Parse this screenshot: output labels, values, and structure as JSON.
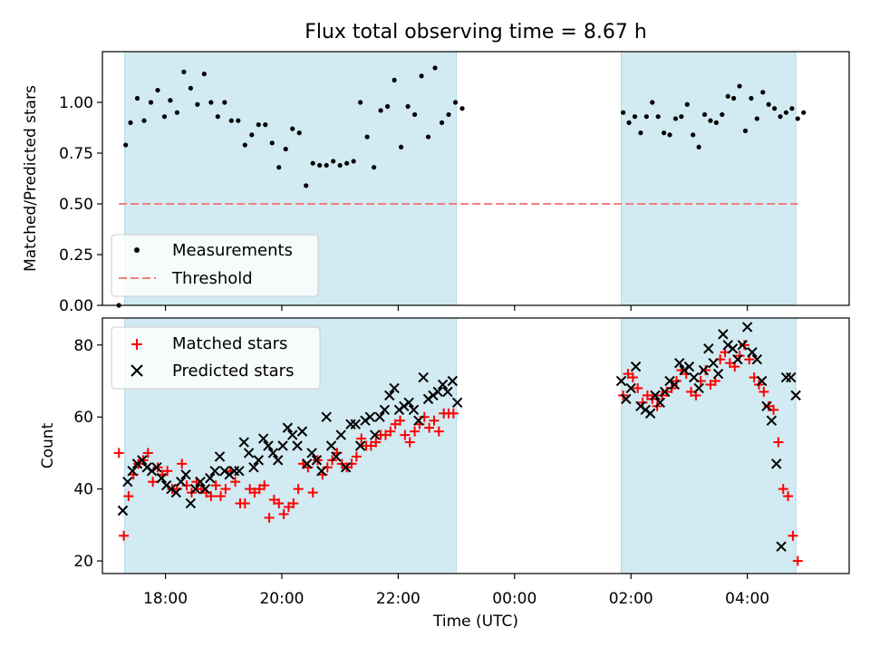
{
  "figure": {
    "title": "Flux total observing time = 8.67 h",
    "xlabel": "Time (UTC)"
  },
  "colors": {
    "shade": "#add8e6",
    "threshold": "#f08080",
    "matched": "#ff0000",
    "predicted": "#000000",
    "measurement": "#000000"
  },
  "chart_data": [
    {
      "type": "scatter",
      "ylabel": "Matched/Predicted stars",
      "xlim": [
        "16:55",
        "29:45"
      ],
      "x_ticks": [],
      "ylim": [
        0,
        1.25
      ],
      "y_ticks": [
        0.0,
        0.25,
        0.5,
        0.75,
        1.0
      ],
      "y_tick_labels": [
        "0.00",
        "0.25",
        "0.50",
        "0.75",
        "1.00"
      ],
      "legend_location": "lower-left",
      "shaded_intervals": [
        [
          "17:18",
          "23:00"
        ],
        [
          "25:50",
          "28:50"
        ]
      ],
      "series": [
        {
          "name": "Measurements",
          "style": "dot",
          "x": [
            "17:12",
            "17:19",
            "17:24",
            "17:31",
            "17:38",
            "17:45",
            "17:52",
            "17:59",
            "18:05",
            "18:12",
            "18:19",
            "18:26",
            "18:33",
            "18:40",
            "18:47",
            "18:54",
            "19:01",
            "19:08",
            "19:15",
            "19:22",
            "19:29",
            "19:36",
            "19:43",
            "19:50",
            "19:57",
            "20:04",
            "20:11",
            "20:18",
            "20:25",
            "20:32",
            "20:39",
            "20:46",
            "20:53",
            "21:00",
            "21:07",
            "21:14",
            "21:21",
            "21:28",
            "21:35",
            "21:42",
            "21:49",
            "21:56",
            "22:03",
            "22:10",
            "22:17",
            "22:24",
            "22:31",
            "22:38",
            "22:45",
            "22:52",
            "22:59",
            "23:06",
            "25:52",
            "25:58",
            "26:04",
            "26:10",
            "26:16",
            "26:22",
            "26:28",
            "26:34",
            "26:40",
            "26:46",
            "26:52",
            "26:58",
            "27:04",
            "27:10",
            "27:16",
            "27:22",
            "27:28",
            "27:34",
            "27:40",
            "27:46",
            "27:52",
            "27:58",
            "28:04",
            "28:10",
            "28:16",
            "28:22",
            "28:28",
            "28:34",
            "28:40",
            "28:46",
            "28:52",
            "28:58"
          ],
          "y": [
            0.0,
            0.79,
            0.9,
            1.02,
            0.91,
            1.0,
            1.06,
            0.93,
            1.01,
            0.95,
            1.15,
            1.07,
            0.99,
            1.14,
            1.0,
            0.93,
            1.0,
            0.91,
            0.91,
            0.79,
            0.84,
            0.89,
            0.89,
            0.8,
            0.68,
            0.77,
            0.87,
            0.85,
            0.59,
            0.7,
            0.69,
            0.69,
            0.71,
            0.69,
            0.7,
            0.71,
            1.0,
            0.83,
            0.68,
            0.96,
            0.98,
            1.11,
            0.78,
            0.98,
            0.94,
            1.13,
            0.83,
            1.17,
            0.9,
            0.94,
            1.0,
            0.97,
            0.95,
            0.9,
            0.93,
            0.85,
            0.93,
            1.0,
            0.93,
            0.85,
            0.84,
            0.92,
            0.93,
            0.99,
            0.84,
            0.78,
            0.94,
            0.91,
            0.9,
            0.94,
            1.03,
            1.02,
            1.08,
            0.86,
            1.02,
            0.92,
            1.05,
            0.99,
            0.97,
            0.93,
            0.95,
            0.97,
            0.92,
            0.95
          ]
        },
        {
          "name": "Threshold",
          "style": "dashed-line",
          "x": [
            "17:12",
            "28:52"
          ],
          "y": [
            0.5,
            0.5
          ]
        }
      ]
    },
    {
      "type": "scatter",
      "ylabel": "Count",
      "xlim": [
        "16:55",
        "29:45"
      ],
      "x_ticks": [
        "18:00",
        "20:00",
        "22:00",
        "24:00",
        "26:00",
        "28:00"
      ],
      "x_tick_labels": [
        "18:00",
        "20:00",
        "22:00",
        "00:00",
        "02:00",
        "04:00"
      ],
      "ylim": [
        16.5,
        87.5
      ],
      "y_ticks": [
        20,
        40,
        60,
        80
      ],
      "y_tick_labels": [
        "20",
        "40",
        "60",
        "80"
      ],
      "legend_location": "top-left",
      "shaded_intervals": [
        [
          "17:18",
          "23:00"
        ],
        [
          "25:50",
          "28:50"
        ]
      ],
      "series": [
        {
          "name": "Matched stars",
          "style": "plus",
          "x": [
            "17:12",
            "17:17",
            "17:22",
            "17:27",
            "17:32",
            "17:37",
            "17:42",
            "17:47",
            "17:52",
            "17:57",
            "18:02",
            "18:07",
            "18:12",
            "18:17",
            "18:22",
            "18:27",
            "18:32",
            "18:37",
            "18:42",
            "18:47",
            "18:52",
            "18:57",
            "19:02",
            "19:07",
            "19:12",
            "19:17",
            "19:22",
            "19:27",
            "19:32",
            "19:37",
            "19:42",
            "19:47",
            "19:52",
            "19:57",
            "20:02",
            "20:07",
            "20:12",
            "20:17",
            "20:22",
            "20:27",
            "20:32",
            "20:37",
            "20:42",
            "20:47",
            "20:52",
            "20:57",
            "21:02",
            "21:07",
            "21:12",
            "21:17",
            "21:22",
            "21:27",
            "21:32",
            "21:37",
            "21:42",
            "21:47",
            "21:52",
            "21:57",
            "22:02",
            "22:07",
            "22:12",
            "22:17",
            "22:22",
            "22:27",
            "22:32",
            "22:37",
            "22:42",
            "22:47",
            "22:52",
            "22:57",
            "25:52",
            "25:57",
            "26:02",
            "26:07",
            "26:12",
            "26:17",
            "26:22",
            "26:27",
            "26:32",
            "26:37",
            "26:42",
            "26:47",
            "26:52",
            "26:57",
            "27:02",
            "27:07",
            "27:12",
            "27:17",
            "27:22",
            "27:27",
            "27:32",
            "27:37",
            "27:42",
            "27:47",
            "27:52",
            "27:57",
            "28:02",
            "28:07",
            "28:12",
            "28:17",
            "28:22",
            "28:27",
            "28:32",
            "28:37",
            "28:42",
            "28:47",
            "28:52"
          ],
          "y": [
            50,
            27,
            38,
            44,
            47,
            48,
            50,
            42,
            46,
            44,
            45,
            40,
            40,
            47,
            41,
            39,
            42,
            40,
            39,
            38,
            41,
            38,
            40,
            45,
            42,
            36,
            36,
            40,
            39,
            40,
            41,
            32,
            37,
            36,
            33,
            35,
            36,
            40,
            47,
            46,
            39,
            48,
            44,
            46,
            48,
            50,
            47,
            46,
            47,
            49,
            54,
            52,
            52,
            53,
            55,
            55,
            56,
            58,
            59,
            55,
            53,
            56,
            58,
            60,
            57,
            59,
            56,
            61,
            61,
            61,
            66,
            72,
            71,
            68,
            64,
            66,
            65,
            63,
            66,
            67,
            68,
            70,
            73,
            72,
            67,
            66,
            70,
            73,
            69,
            70,
            76,
            78,
            75,
            74,
            77,
            80,
            76,
            71,
            69,
            67,
            63,
            62,
            53,
            40,
            38,
            27,
            20
          ]
        },
        {
          "name": "Predicted stars",
          "style": "x",
          "x": [
            "17:16",
            "17:21",
            "17:26",
            "17:31",
            "17:36",
            "17:41",
            "17:46",
            "17:51",
            "17:56",
            "18:01",
            "18:06",
            "18:11",
            "18:16",
            "18:21",
            "18:26",
            "18:31",
            "18:36",
            "18:41",
            "18:46",
            "18:51",
            "18:56",
            "19:01",
            "19:06",
            "19:11",
            "19:16",
            "19:21",
            "19:26",
            "19:31",
            "19:36",
            "19:41",
            "19:46",
            "19:51",
            "19:56",
            "20:01",
            "20:06",
            "20:11",
            "20:16",
            "20:21",
            "20:26",
            "20:31",
            "20:36",
            "20:41",
            "20:46",
            "20:51",
            "20:56",
            "21:01",
            "21:06",
            "21:11",
            "21:16",
            "21:21",
            "21:26",
            "21:31",
            "21:36",
            "21:41",
            "21:46",
            "21:51",
            "21:56",
            "22:01",
            "22:06",
            "22:11",
            "22:16",
            "22:21",
            "22:26",
            "22:31",
            "22:36",
            "22:41",
            "22:46",
            "22:51",
            "22:56",
            "23:01",
            "25:50",
            "25:55",
            "26:00",
            "26:05",
            "26:10",
            "26:15",
            "26:20",
            "26:25",
            "26:30",
            "26:35",
            "26:40",
            "26:45",
            "26:50",
            "26:55",
            "27:00",
            "27:05",
            "27:10",
            "27:15",
            "27:20",
            "27:25",
            "27:30",
            "27:35",
            "27:40",
            "27:45",
            "27:50",
            "27:55",
            "28:00",
            "28:05",
            "28:10",
            "28:15",
            "28:20",
            "28:25",
            "28:30",
            "28:35",
            "28:40",
            "28:45",
            "28:50"
          ],
          "y": [
            34,
            42,
            45,
            47,
            48,
            46,
            45,
            46,
            43,
            41,
            40,
            39,
            42,
            44,
            36,
            40,
            42,
            40,
            43,
            45,
            49,
            45,
            44,
            45,
            45,
            53,
            50,
            46,
            48,
            54,
            52,
            50,
            48,
            52,
            57,
            55,
            52,
            56,
            47,
            50,
            48,
            45,
            60,
            52,
            49,
            55,
            46,
            58,
            58,
            52,
            59,
            60,
            55,
            60,
            62,
            66,
            68,
            62,
            63,
            64,
            62,
            59,
            71,
            65,
            66,
            67,
            69,
            67,
            70,
            64,
            70,
            65,
            68,
            74,
            63,
            62,
            61,
            66,
            64,
            67,
            70,
            69,
            75,
            73,
            74,
            71,
            68,
            73,
            79,
            75,
            72,
            83,
            80,
            79,
            76,
            80,
            85,
            78,
            76,
            70,
            63,
            59,
            47,
            24,
            71,
            71,
            66
          ]
        }
      ]
    }
  ]
}
